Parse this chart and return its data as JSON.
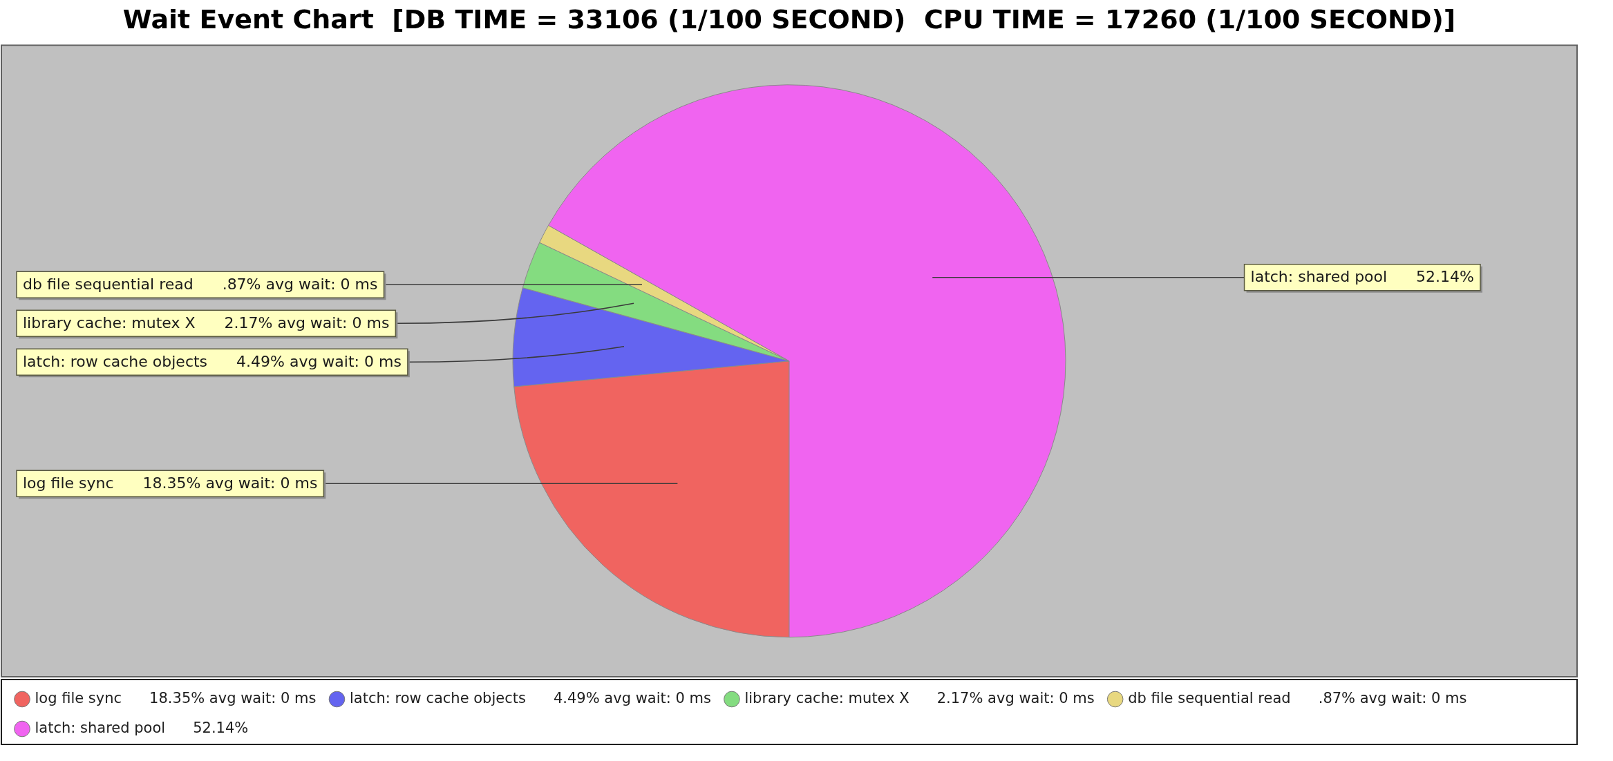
{
  "chart_data": {
    "type": "pie",
    "title": "Wait Event Chart  [DB TIME = 33106 (1/100 SECOND)  CPU TIME = 17260 (1/100 SECOND)]",
    "categories": [
      "log file sync",
      "latch: row cache objects",
      "library cache: mutex X",
      "db file sequential read",
      "latch: shared pool"
    ],
    "values": [
      18.35,
      4.49,
      2.17,
      0.87,
      52.14
    ],
    "colors": [
      "#f06460",
      "#6464f0",
      "#84dc80",
      "#e8d880",
      "#f064f0"
    ],
    "value_labels": [
      "18.35% avg wait: 0 ms",
      "4.49% avg wait: 0 ms",
      "2.17% avg wait: 0 ms",
      ".87% avg wait: 0 ms",
      "52.14%"
    ],
    "legend": "bottom"
  }
}
